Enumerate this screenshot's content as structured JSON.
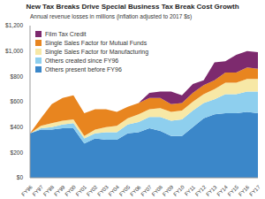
{
  "chart_data": {
    "type": "area",
    "title": "New Tax Breaks Drive Special Business Tax Break Cost Growth",
    "subtitle": "Annual revenue losses in millions (inflation adjusted to 2017 $s)",
    "categories": [
      "FY96",
      "FY97",
      "FY98",
      "FY99",
      "FY00",
      "FY01",
      "FY02",
      "FY03",
      "FY04",
      "FY05",
      "FY06",
      "FY07",
      "FY08",
      "FY09",
      "FY10",
      "FY11",
      "FY12",
      "FY13",
      "FY14",
      "FY15",
      "FY16",
      "FY17"
    ],
    "series": [
      {
        "name": "Film Tax Credit",
        "color": "#7d2a6e",
        "values": [
          0,
          0,
          0,
          0,
          0,
          0,
          0,
          0,
          0,
          0,
          0,
          40,
          50,
          100,
          60,
          70,
          40,
          140,
          90,
          140,
          130,
          130
        ]
      },
      {
        "name": "Single Sales Factor for Mutual Funds",
        "color": "#e8851f",
        "values": [
          0,
          60,
          150,
          180,
          190,
          180,
          160,
          140,
          110,
          90,
          90,
          90,
          80,
          60,
          60,
          70,
          70,
          70,
          80,
          80,
          90,
          80
        ]
      },
      {
        "name": "Single Sales Factor for Manufacturing",
        "color": "#f7e8a6",
        "values": [
          0,
          20,
          30,
          30,
          30,
          20,
          30,
          40,
          50,
          50,
          60,
          60,
          70,
          70,
          70,
          70,
          70,
          80,
          90,
          90,
          100,
          100
        ]
      },
      {
        "name": "Others created since FY96",
        "color": "#8ecfee",
        "values": [
          0,
          10,
          20,
          30,
          40,
          40,
          40,
          60,
          60,
          70,
          80,
          90,
          110,
          120,
          130,
          130,
          120,
          120,
          150,
          150,
          160,
          170
        ]
      },
      {
        "name": "Others present before FY96",
        "color": "#3b87c9",
        "values": [
          350,
          380,
          380,
          390,
          390,
          270,
          310,
          300,
          300,
          350,
          360,
          390,
          370,
          330,
          330,
          400,
          470,
          500,
          510,
          510,
          520,
          510
        ]
      }
    ],
    "ylim": [
      0,
      1200
    ],
    "yticks": [
      {
        "value": 0,
        "label": "$0"
      },
      {
        "value": 200,
        "label": "$200"
      },
      {
        "value": 400,
        "label": "$400"
      },
      {
        "value": 600,
        "label": "$600"
      },
      {
        "value": 800,
        "label": "$800"
      },
      {
        "value": 1000,
        "label": "$1,000"
      },
      {
        "value": 1200,
        "label": "$1,200"
      }
    ],
    "stacked": true,
    "grid": false,
    "legend": "top-left"
  }
}
